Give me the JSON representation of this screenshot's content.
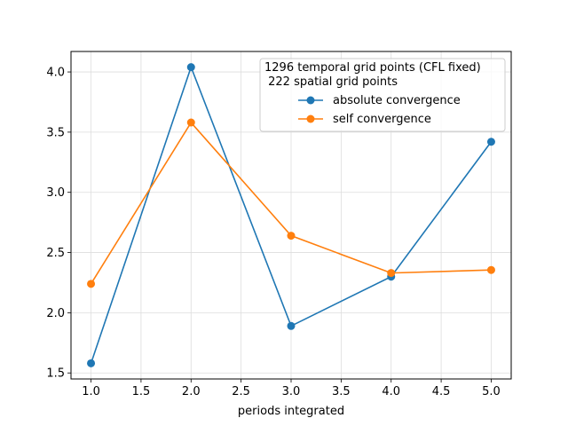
{
  "chart_data": {
    "type": "line",
    "x": [
      1.0,
      2.0,
      3.0,
      4.0,
      5.0
    ],
    "series": [
      {
        "name": "absolute convergence",
        "values": [
          1.58,
          4.04,
          1.89,
          2.3,
          3.42
        ],
        "color": "#1f77b4"
      },
      {
        "name": "self convergence",
        "values": [
          2.24,
          3.58,
          2.64,
          2.33,
          2.355
        ],
        "color": "#ff7f0e"
      }
    ],
    "title": "",
    "xlabel": "periods integrated",
    "ylabel": "",
    "xlim": [
      0.8,
      5.2
    ],
    "ylim": [
      1.45,
      4.17
    ],
    "xticks": [
      "1.0",
      "1.5",
      "2.0",
      "2.5",
      "3.0",
      "3.5",
      "4.0",
      "4.5",
      "5.0"
    ],
    "yticks": [
      "1.5",
      "2.0",
      "2.5",
      "3.0",
      "3.5",
      "4.0"
    ],
    "grid": true,
    "legend": {
      "title_line1": "1296 temporal grid points (CFL fixed)",
      "title_line2": " 222 spatial grid points",
      "placement": "upper-right"
    }
  }
}
